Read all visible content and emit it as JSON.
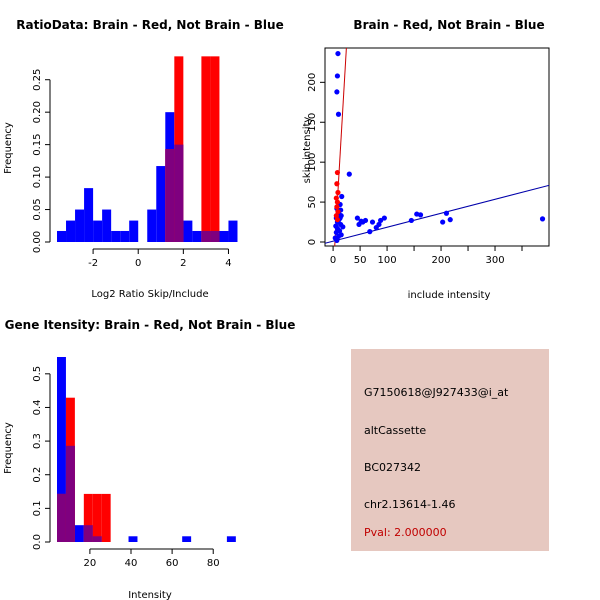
{
  "colors": {
    "brain": "#ff0000",
    "not_brain": "#0000ff",
    "overlap": "#7f007f",
    "fit_line_brain": "#cc0000",
    "fit_line_not_brain": "#0000aa",
    "info_bg": "#e6c8c0",
    "pval_text": "#c00000"
  },
  "chart_data": [
    {
      "type": "bar",
      "subtype": "overlaid-histogram",
      "title": "RatioData: Brain - Red, Not Brain - Blue",
      "xlabel": "Log2 Ratio Skip/Include",
      "ylabel": "Frequency",
      "xlim": [
        -3.6,
        4.6
      ],
      "ylim": [
        0,
        0.285
      ],
      "xticks": [
        -2,
        0,
        2,
        4
      ],
      "yticks": [
        0.0,
        0.05,
        0.1,
        0.15,
        0.2,
        0.25
      ],
      "ytick_labels": [
        "0.00",
        "0.05",
        "0.10",
        "0.15",
        "0.20",
        "0.25"
      ],
      "bin_width": 0.4,
      "bin_starts": [
        -3.6,
        -3.2,
        -2.8,
        -2.4,
        -2.0,
        -1.6,
        -1.2,
        -0.8,
        -0.4,
        0.0,
        0.4,
        0.8,
        1.2,
        1.6,
        2.0,
        2.4,
        2.8,
        3.2,
        3.6,
        4.0
      ],
      "series": [
        {
          "name": "Not Brain",
          "color": "blue",
          "values": [
            0.017,
            0.033,
            0.05,
            0.083,
            0.033,
            0.05,
            0.017,
            0.017,
            0.033,
            0.0,
            0.05,
            0.117,
            0.2,
            0.15,
            0.033,
            0.017,
            0.017,
            0.017,
            0.017,
            0.033
          ]
        },
        {
          "name": "Brain",
          "color": "red",
          "values": [
            0,
            0,
            0,
            0,
            0,
            0,
            0,
            0,
            0,
            0,
            0,
            0,
            0.143,
            0.286,
            0,
            0,
            0.286,
            0.286,
            0,
            0
          ]
        }
      ]
    },
    {
      "type": "scatter",
      "title": "Brain - Red, Not Brain - Blue",
      "xlabel": "include intensity",
      "ylabel": "skip intensity",
      "xlim": [
        -15,
        400
      ],
      "ylim": [
        -5,
        243
      ],
      "xticks": [
        0,
        50,
        100,
        200,
        300
      ],
      "xtick_labels": [
        "0",
        "50",
        "100",
        "200",
        "300"
      ],
      "xticks_minor": [
        150,
        250,
        350
      ],
      "yticks": [
        0,
        50,
        100,
        150,
        200
      ],
      "series": [
        {
          "name": "Not Brain",
          "color": "blue",
          "points": [
            [
              9,
              236
            ],
            [
              8,
              208
            ],
            [
              7,
              188
            ],
            [
              10,
              160
            ],
            [
              30,
              85
            ],
            [
              16,
              57
            ],
            [
              13,
              47
            ],
            [
              7,
              42
            ],
            [
              14,
              40
            ],
            [
              10,
              36
            ],
            [
              15,
              33
            ],
            [
              6,
              30
            ],
            [
              11,
              28
            ],
            [
              8,
              25
            ],
            [
              14,
              22
            ],
            [
              5,
              20
            ],
            [
              18,
              19
            ],
            [
              8,
              17
            ],
            [
              12,
              14
            ],
            [
              6,
              12
            ],
            [
              15,
              9
            ],
            [
              10,
              7
            ],
            [
              4,
              5
            ],
            [
              7,
              2
            ],
            [
              13,
              30
            ],
            [
              45,
              30
            ],
            [
              60,
              27
            ],
            [
              52,
              26
            ],
            [
              73,
              25
            ],
            [
              88,
              27
            ],
            [
              95,
              30
            ],
            [
              85,
              22
            ],
            [
              80,
              18
            ],
            [
              68,
              13
            ],
            [
              55,
              25
            ],
            [
              48,
              22
            ],
            [
              155,
              35
            ],
            [
              162,
              34
            ],
            [
              145,
              27
            ],
            [
              210,
              36
            ],
            [
              203,
              25
            ],
            [
              217,
              28
            ],
            [
              388,
              29
            ]
          ]
        },
        {
          "name": "Brain",
          "color": "red",
          "points": [
            [
              8,
              87
            ],
            [
              7,
              73
            ],
            [
              9,
              62
            ],
            [
              6,
              55
            ],
            [
              8,
              50
            ],
            [
              7,
              44
            ],
            [
              9,
              38
            ],
            [
              6,
              33
            ],
            [
              8,
              28
            ]
          ]
        }
      ],
      "fit_lines": [
        {
          "name": "Brain",
          "color": "red",
          "slope": 11.5,
          "intercept": -40
        },
        {
          "name": "Not Brain",
          "color": "blue",
          "slope": 0.175,
          "intercept": 1
        }
      ]
    },
    {
      "type": "bar",
      "subtype": "overlaid-histogram",
      "title": "Gene Itensity: Brain - Red, Not Brain - Blue",
      "xlabel": "Intensity",
      "ylabel": "Frequency",
      "xlim": [
        4,
        94
      ],
      "ylim": [
        0,
        0.55
      ],
      "xticks": [
        20,
        40,
        60,
        80
      ],
      "yticks": [
        0.0,
        0.1,
        0.2,
        0.3,
        0.4,
        0.5
      ],
      "ytick_labels": [
        "0.0",
        "0.1",
        "0.2",
        "0.3",
        "0.4",
        "0.5"
      ],
      "bin_width": 4.35,
      "bin_starts": [
        4.0,
        8.35,
        12.7,
        17.05,
        21.4,
        25.75,
        30.1,
        34.45,
        38.8,
        43.15,
        47.5,
        51.85,
        56.2,
        60.55,
        64.9,
        69.25,
        73.6,
        77.95,
        82.3,
        86.65,
        91.0
      ],
      "series": [
        {
          "name": "Not Brain",
          "color": "blue",
          "values": [
            0.55,
            0.286,
            0.05,
            0.05,
            0.017,
            0,
            0,
            0,
            0.017,
            0,
            0,
            0,
            0,
            0,
            0.017,
            0,
            0,
            0,
            0,
            0.017,
            0
          ]
        },
        {
          "name": "Brain",
          "color": "red",
          "values": [
            0.143,
            0.429,
            0,
            0.143,
            0.143,
            0.143,
            0,
            0,
            0,
            0,
            0,
            0,
            0,
            0,
            0,
            0,
            0,
            0,
            0,
            0,
            0
          ]
        }
      ]
    }
  ],
  "info": {
    "probe": "G7150618@J927433@i_at",
    "event_type": "altCassette",
    "accession": "BC027342",
    "location": "chr2.13614-1.46",
    "pval": "Pval: 2.000000"
  }
}
